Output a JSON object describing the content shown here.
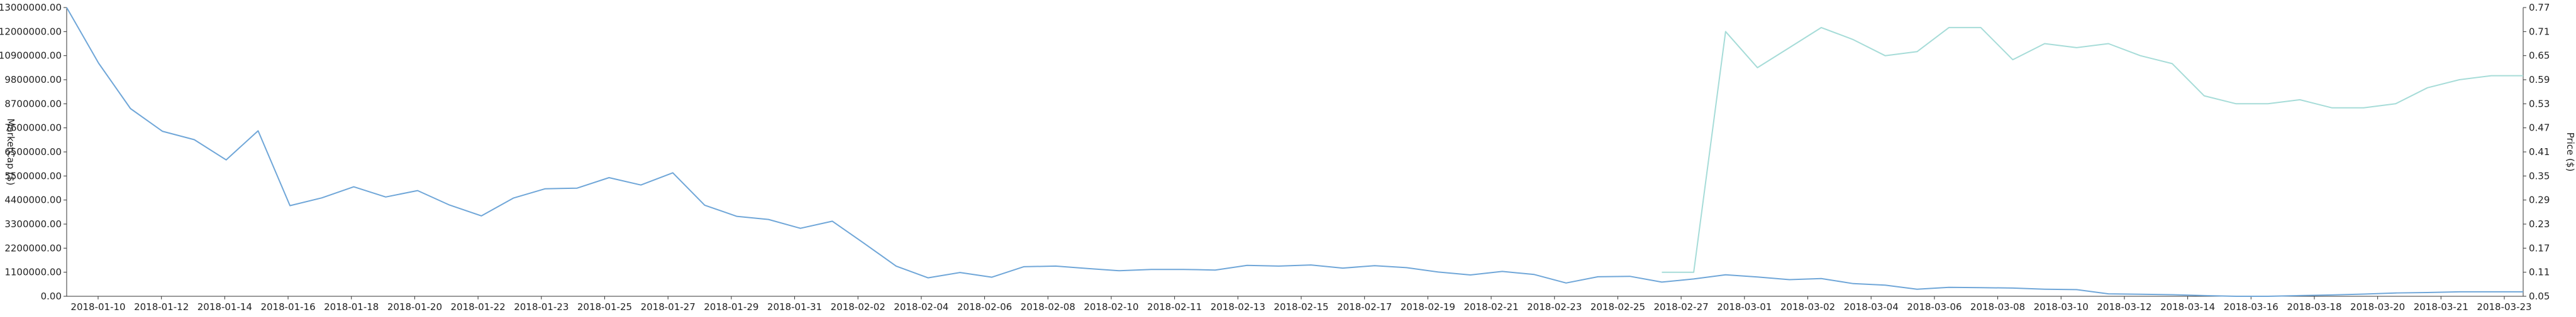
{
  "chart_data": {
    "type": "line",
    "title": "",
    "xlabel": "",
    "ylabel_left": "MarketCap ($)",
    "ylabel_right": "Price ($)",
    "grid": false,
    "y_left_ticks": [
      "0.00",
      "1100000.00",
      "2200000.00",
      "3300000.00",
      "4400000.00",
      "5500000.00",
      "6500000.00",
      "7600000.00",
      "8700000.00",
      "9800000.00",
      "10900000.00",
      "12000000.00",
      "13000000.00"
    ],
    "y_right_ticks": [
      "0.05",
      "0.11",
      "0.17",
      "0.23",
      "0.29",
      "0.35",
      "0.41",
      "0.47",
      "0.53",
      "0.59",
      "0.65",
      "0.71",
      "0.77"
    ],
    "ylim_left": [
      0,
      13000000
    ],
    "ylim_right": [
      0.05,
      0.77
    ],
    "x": [
      "2018-01-10",
      "2018-01-11",
      "2018-01-12",
      "2018-01-13",
      "2018-01-14",
      "2018-01-15",
      "2018-01-16",
      "2018-01-17",
      "2018-01-18",
      "2018-01-19",
      "2018-01-20",
      "2018-01-21",
      "2018-01-22",
      "2018-01-22b",
      "2018-01-23",
      "2018-01-24",
      "2018-01-25",
      "2018-01-26",
      "2018-01-27",
      "2018-01-28",
      "2018-01-29",
      "2018-01-30",
      "2018-01-31",
      "2018-02-01",
      "2018-02-02",
      "2018-02-03",
      "2018-02-04",
      "2018-02-05",
      "2018-02-06",
      "2018-02-07",
      "2018-02-08",
      "2018-02-09",
      "2018-02-10",
      "2018-02-10b",
      "2018-02-11",
      "2018-02-12",
      "2018-02-13",
      "2018-02-14",
      "2018-02-15",
      "2018-02-16",
      "2018-02-17",
      "2018-02-18",
      "2018-02-19",
      "2018-02-20",
      "2018-02-21",
      "2018-02-22",
      "2018-02-23",
      "2018-02-24",
      "2018-02-25",
      "2018-02-26",
      "2018-02-27",
      "2018-02-28",
      "2018-03-01",
      "2018-03-01b",
      "2018-03-02",
      "2018-03-03",
      "2018-03-04",
      "2018-03-05",
      "2018-03-06",
      "2018-03-07",
      "2018-03-08",
      "2018-03-09",
      "2018-03-10",
      "2018-03-11",
      "2018-03-12",
      "2018-03-13",
      "2018-03-14",
      "2018-03-15",
      "2018-03-16",
      "2018-03-17",
      "2018-03-18",
      "2018-03-19",
      "2018-03-20",
      "2018-03-21",
      "2018-03-21b",
      "2018-03-22",
      "2018-03-23",
      "2018-03-24"
    ],
    "x_tick_labels": [
      "2018-01-10",
      "2018-01-12",
      "2018-01-14",
      "2018-01-16",
      "2018-01-18",
      "2018-01-20",
      "2018-01-22",
      "2018-01-23",
      "2018-01-25",
      "2018-01-27",
      "2018-01-29",
      "2018-01-31",
      "2018-02-02",
      "2018-02-04",
      "2018-02-06",
      "2018-02-08",
      "2018-02-10",
      "2018-02-11",
      "2018-02-13",
      "2018-02-15",
      "2018-02-17",
      "2018-02-19",
      "2018-02-21",
      "2018-02-23",
      "2018-02-25",
      "2018-02-27",
      "2018-03-01",
      "2018-03-02",
      "2018-03-04",
      "2018-03-06",
      "2018-03-08",
      "2018-03-10",
      "2018-03-12",
      "2018-03-14",
      "2018-03-16",
      "2018-03-18",
      "2018-03-20",
      "2018-03-21",
      "2018-03-23"
    ],
    "series": [
      {
        "name": "MarketCap",
        "axis": "left",
        "color": "#6fa6d8",
        "values": [
          13000000,
          10500000,
          8450000,
          7430000,
          7050000,
          6140000,
          7450000,
          4080000,
          4430000,
          4930000,
          4470000,
          4760000,
          4110000,
          3620000,
          4420000,
          4840000,
          4870000,
          5340000,
          5010000,
          5560000,
          4100000,
          3600000,
          3460000,
          3060000,
          3380000,
          2380000,
          1360000,
          830000,
          1070000,
          860000,
          1330000,
          1360000,
          1250000,
          1150000,
          1210000,
          1210000,
          1180000,
          1390000,
          1360000,
          1410000,
          1270000,
          1380000,
          1290000,
          1090000,
          960000,
          1120000,
          980000,
          600000,
          880000,
          900000,
          640000,
          780000,
          970000,
          870000,
          750000,
          800000,
          570000,
          500000,
          320000,
          400000,
          390000,
          370000,
          320000,
          300000,
          110000,
          90000,
          70000,
          30000,
          0,
          0,
          30000,
          60000,
          100000,
          150000,
          170000,
          200000,
          200000,
          200000
        ]
      },
      {
        "name": "Price",
        "axis": "right",
        "color": "#a6dcd8",
        "values": [
          null,
          null,
          null,
          null,
          null,
          null,
          null,
          null,
          null,
          null,
          null,
          null,
          null,
          null,
          null,
          null,
          null,
          null,
          null,
          null,
          null,
          null,
          null,
          null,
          null,
          null,
          null,
          null,
          null,
          null,
          null,
          null,
          null,
          null,
          null,
          null,
          null,
          null,
          null,
          null,
          null,
          null,
          null,
          null,
          null,
          null,
          null,
          null,
          null,
          null,
          0.11,
          0.11,
          0.71,
          0.62,
          0.67,
          0.72,
          0.69,
          0.65,
          0.66,
          0.72,
          0.72,
          0.64,
          0.68,
          0.67,
          0.68,
          0.65,
          0.63,
          0.55,
          0.53,
          0.53,
          0.54,
          0.52,
          0.52,
          0.53,
          0.57,
          0.59,
          0.6,
          0.6
        ]
      }
    ]
  }
}
